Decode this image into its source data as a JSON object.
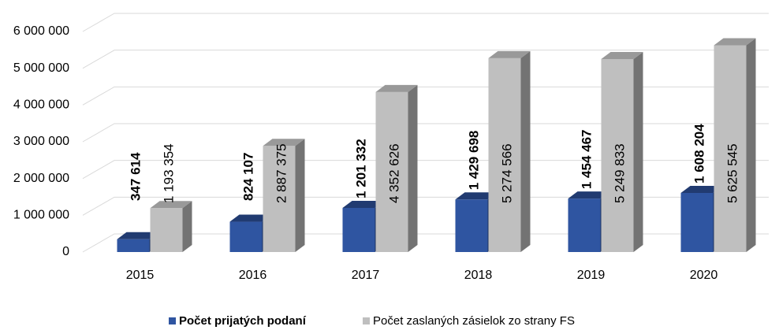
{
  "chart_data": {
    "type": "bar3d",
    "categories": [
      "2015",
      "2016",
      "2017",
      "2018",
      "2019",
      "2020"
    ],
    "series": [
      {
        "name": "Počet prijatých podaní",
        "color": "#2f55a1",
        "values": [
          347614,
          824107,
          1201332,
          1429698,
          1454467,
          1608204
        ],
        "value_labels": [
          "347 614",
          "824 107",
          "1 201 332",
          "1 429 698",
          "1 454 467",
          "1 608 204"
        ]
      },
      {
        "name": "Počet zaslaných zásielok zo strany FS",
        "color": "#bfbfbf",
        "values": [
          1193354,
          2887375,
          4352626,
          5274566,
          5249833,
          5625545
        ],
        "value_labels": [
          "1 193 354",
          "2 887 375",
          "4 352 626",
          "5 274 566",
          "5 249 833",
          "5 625 545"
        ]
      }
    ],
    "ylim": [
      0,
      6000000
    ],
    "yticks": [
      {
        "value": 0,
        "label": "0"
      },
      {
        "value": 1000000,
        "label": "1 000 000"
      },
      {
        "value": 2000000,
        "label": "2 000 000"
      },
      {
        "value": 3000000,
        "label": "3 000 000"
      },
      {
        "value": 4000000,
        "label": "4 000 000"
      },
      {
        "value": 5000000,
        "label": "5 000 000"
      },
      {
        "value": 6000000,
        "label": "6 000 000"
      }
    ],
    "grid": true
  }
}
